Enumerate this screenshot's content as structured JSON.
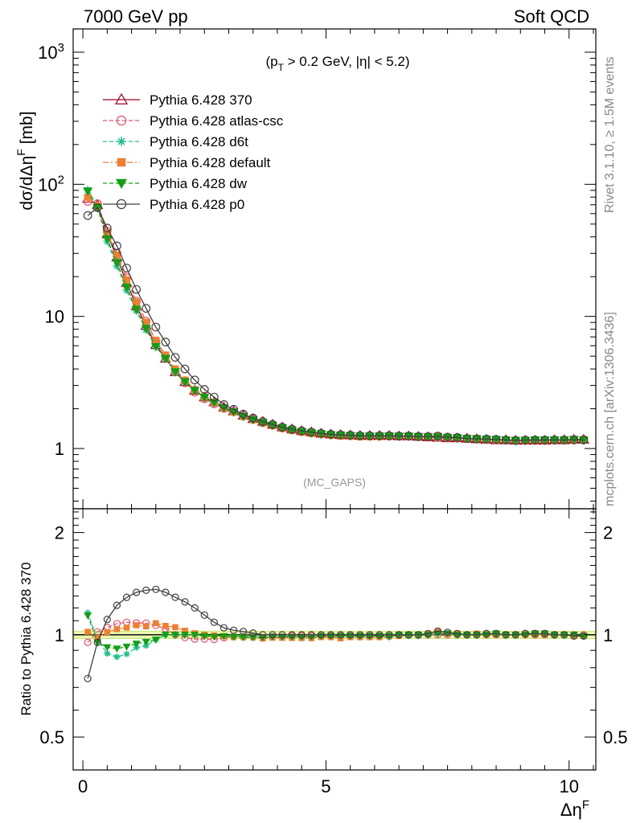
{
  "header": {
    "left": "7000 GeV pp",
    "right": "Soft QCD"
  },
  "side_labels": {
    "top": "Rivet 3.1.10, ≥ 1.5M events",
    "bottom": "mcplots.cern.ch [arXiv:1306.3436]"
  },
  "chart_data": {
    "type": "line",
    "x_scale": "linear",
    "x_range": [
      -0.2,
      10.55
    ],
    "xlabel": "ΔηF",
    "xticks": [
      0,
      5,
      10
    ],
    "annotation_cut": "(pT > 0.2 GeV, |η| < 5.2)",
    "analysis_tag": "(MC_GAPS)",
    "top_panel": {
      "ylabel": "dσ/dΔηF [mb]",
      "y_scale": "log",
      "y_range": [
        0.35,
        1500
      ],
      "ytick_labels": [
        "1",
        "10",
        "10^2",
        "10^3"
      ],
      "yticks": [
        1,
        10,
        100,
        1000
      ]
    },
    "ratio_panel": {
      "ylabel": "Ratio to Pythia 6.428 370",
      "y_scale": "log",
      "y_range": [
        0.4,
        2.35
      ],
      "yticks": [
        0.5,
        1,
        2
      ],
      "ytick_labels": [
        "0.5",
        "1",
        "2"
      ],
      "band": [
        0.975,
        1.025
      ]
    },
    "x": [
      0.1,
      0.3,
      0.5,
      0.7,
      0.9,
      1.1,
      1.3,
      1.5,
      1.7,
      1.9,
      2.1,
      2.3,
      2.5,
      2.7,
      2.9,
      3.1,
      3.3,
      3.5,
      3.7,
      3.9,
      4.1,
      4.3,
      4.5,
      4.7,
      4.9,
      5.1,
      5.3,
      5.5,
      5.7,
      5.9,
      6.1,
      6.3,
      6.5,
      6.7,
      6.9,
      7.1,
      7.3,
      7.5,
      7.7,
      7.9,
      8.1,
      8.3,
      8.5,
      8.7,
      8.9,
      9.1,
      9.3,
      9.5,
      9.7,
      9.9,
      10.1,
      10.3
    ],
    "series": [
      {
        "name": "Pythia 6.428 370",
        "color": "#a00020",
        "marker": "triangle-open",
        "dash": "solid",
        "values": [
          78,
          70,
          42,
          28,
          18,
          12,
          8.5,
          6.1,
          4.8,
          3.8,
          3.2,
          2.75,
          2.45,
          2.25,
          2.05,
          1.92,
          1.78,
          1.68,
          1.6,
          1.52,
          1.45,
          1.4,
          1.36,
          1.33,
          1.3,
          1.28,
          1.27,
          1.26,
          1.25,
          1.25,
          1.25,
          1.25,
          1.24,
          1.24,
          1.23,
          1.22,
          1.21,
          1.2,
          1.2,
          1.19,
          1.18,
          1.17,
          1.16,
          1.16,
          1.15,
          1.15,
          1.15,
          1.15,
          1.16,
          1.16,
          1.17,
          1.17
        ]
      },
      {
        "name": "Pythia 6.428 atlas-csc",
        "color": "#e8506a",
        "marker": "circle-open",
        "dash": "dashed",
        "values": [
          74.1,
          71.4,
          44.1,
          30.2,
          19.6,
          13.0,
          9.2,
          6.5,
          5.0,
          3.8,
          3.14,
          2.67,
          2.38,
          2.18,
          2.01,
          1.9,
          1.76,
          1.66,
          1.57,
          1.5,
          1.43,
          1.39,
          1.35,
          1.32,
          1.29,
          1.27,
          1.26,
          1.25,
          1.24,
          1.24,
          1.24,
          1.24,
          1.24,
          1.24,
          1.23,
          1.22,
          1.21,
          1.2,
          1.2,
          1.19,
          1.18,
          1.17,
          1.16,
          1.16,
          1.15,
          1.15,
          1.15,
          1.15,
          1.16,
          1.16,
          1.17,
          1.17
        ]
      },
      {
        "name": "Pythia 6.428 d6t",
        "color": "#20c090",
        "marker": "asterisk",
        "dash": "dashed",
        "values": [
          90.5,
          67.9,
          37.0,
          24.1,
          15.8,
          11.0,
          7.9,
          5.9,
          4.8,
          3.8,
          3.2,
          2.75,
          2.43,
          2.23,
          2.03,
          1.9,
          1.76,
          1.66,
          1.57,
          1.5,
          1.43,
          1.38,
          1.34,
          1.31,
          1.28,
          1.26,
          1.25,
          1.24,
          1.23,
          1.23,
          1.23,
          1.23,
          1.23,
          1.23,
          1.22,
          1.22,
          1.22,
          1.21,
          1.2,
          1.19,
          1.18,
          1.17,
          1.16,
          1.16,
          1.15,
          1.15,
          1.15,
          1.15,
          1.16,
          1.16,
          1.16,
          1.16
        ]
      },
      {
        "name": "Pythia 6.428 default",
        "color": "#f07f30",
        "marker": "square",
        "dash": "dashdot",
        "values": [
          79.6,
          68.6,
          42.8,
          29.1,
          18.9,
          12.8,
          9.0,
          6.6,
          5.1,
          4.0,
          3.29,
          2.78,
          2.45,
          2.24,
          2.03,
          1.89,
          1.75,
          1.65,
          1.56,
          1.49,
          1.42,
          1.37,
          1.33,
          1.3,
          1.28,
          1.26,
          1.24,
          1.24,
          1.23,
          1.23,
          1.23,
          1.24,
          1.23,
          1.24,
          1.23,
          1.23,
          1.24,
          1.21,
          1.21,
          1.19,
          1.19,
          1.17,
          1.16,
          1.16,
          1.15,
          1.15,
          1.15,
          1.15,
          1.16,
          1.16,
          1.16,
          1.16
        ]
      },
      {
        "name": "Pythia 6.428 dw",
        "color": "#10a010",
        "marker": "triangle-down",
        "dash": "dashed",
        "values": [
          88.9,
          66.5,
          38.6,
          25.5,
          16.6,
          11.3,
          8.1,
          5.9,
          4.8,
          3.8,
          3.2,
          2.75,
          2.43,
          2.22,
          2.03,
          1.89,
          1.75,
          1.65,
          1.57,
          1.5,
          1.43,
          1.38,
          1.34,
          1.31,
          1.29,
          1.27,
          1.26,
          1.25,
          1.24,
          1.24,
          1.24,
          1.24,
          1.24,
          1.24,
          1.23,
          1.22,
          1.22,
          1.21,
          1.2,
          1.19,
          1.18,
          1.17,
          1.17,
          1.16,
          1.15,
          1.15,
          1.16,
          1.16,
          1.16,
          1.16,
          1.17,
          1.16
        ]
      },
      {
        "name": "Pythia 6.428 p0",
        "color": "#404040",
        "marker": "circle-open",
        "dash": "solid",
        "values": [
          58,
          66.5,
          46.6,
          34.2,
          23.2,
          16.0,
          11.5,
          8.3,
          6.4,
          4.9,
          4.0,
          3.3,
          2.8,
          2.45,
          2.15,
          1.98,
          1.82,
          1.7,
          1.6,
          1.52,
          1.45,
          1.4,
          1.36,
          1.33,
          1.3,
          1.28,
          1.27,
          1.26,
          1.25,
          1.25,
          1.25,
          1.25,
          1.24,
          1.24,
          1.23,
          1.23,
          1.24,
          1.22,
          1.21,
          1.19,
          1.18,
          1.18,
          1.17,
          1.16,
          1.15,
          1.16,
          1.16,
          1.16,
          1.16,
          1.16,
          1.16,
          1.16
        ]
      }
    ]
  }
}
